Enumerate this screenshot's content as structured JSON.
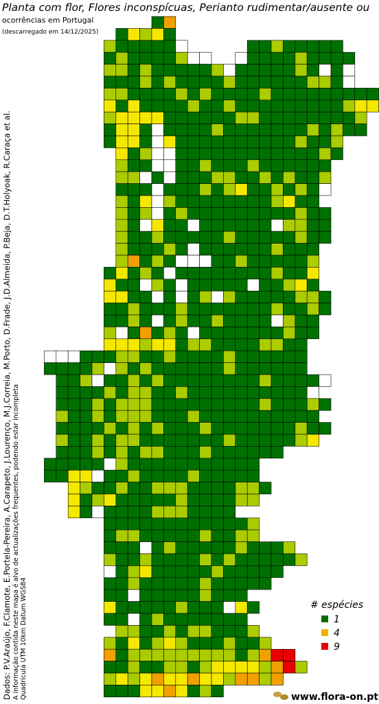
{
  "header": {
    "title": "Planta com flor, Flores inconspícuas, Perianto rudimentar/ausente ou",
    "subtitle": "ocorrências em Portugal",
    "download_note": "(descarregado em 14/12/2025)"
  },
  "credits": [
    "Dados: P.V.Araújo, F.Clamote, E.Portela-Pereira, A.Carapeto, J.Lourenço, M.J.Correia, M.Porto, D.Frade, J.D.Almeida, P.Beja, D.T.Holyoak, R.Caraça et al.",
    "A informação contida neste mapa é alvo de actualizações frequentes, podendo estar incompleta",
    "Quadrícula UTM 10km Datum WGS84"
  ],
  "legend": {
    "title": "# espécies",
    "entries": [
      {
        "value": 1,
        "color": "#007000"
      },
      {
        "value": 4,
        "color": "#f0b400"
      },
      {
        "value": 9,
        "color": "#e80000"
      }
    ]
  },
  "grid": {
    "colors": {
      "w": "#ffffff",
      "g": "#007000",
      "l": "#aacc00",
      "y": "#f5e800",
      "o": "#f0a000",
      "r": "#e80000"
    },
    "rows": [
      "..........go",
      ".......gylyg",
      "......lgggggw.....gglggggg",
      "......glgggglww..wgggglgggg",
      "......llglggggglwggggglgwgw",
      "......ggglglgggglggggggllgw",
      "......llgggglglgggglggggggggg",
      "......ygygggglgglggggggggglyy",
      "......lyyyyggggggllggggggggl",
      "......gyygwgggglggggggglglgg",
      "......gyygwygggggggggglggl",
      ".......yglwwgggggggggggglg",
      ".......lggwwgglggglgggggg",
      ".......llwgwgggllgglglggl",
      ".......gggwggglglygglglgw",
      ".......lgywlgggggggglygg",
      ".......lglwglggggggggglgg",
      ".......lgwyggwggggggwllgg",
      ".......lgglggggglggggglgg",
      ".......lggglgwgggggglggg",
      ".......loglgwwwgglgggggl",
      "......gyglgwgggggggglggy",
      "......yggwlgwgggggwgglyg",
      "......yyggwgwglwlgggggllg",
      "......gglggglggggggglgglg",
      "......gglgwglgglggggwlgg",
      "......lwgoglgwggggggglgg",
      "......yyylyygllggggllgg",
      ".wwwgggllgglgggglgggggg",
      ".gggglwlglgggggglgggggg",
      "..gglwgglglgggggggglggggw",
      "..gggglgllgglggggggggggw",
      "..ggglglllggggggggglggglg",
      "..lgglglllggglgggggggggg",
      "..gggglglglggglggggggglgg",
      "..lgglgllggggggglgggggly",
      "..ggglglgllggglgggggg",
      ".gggggwlggggggggggg",
      ".ggyywgglgggglggggg",
      "...ylgglgglllggggllg",
      "...yglyggggglggggll",
      "...ygwgggglllgggg",
      "......ggggggggggggl",
      "......gllggggglggll",
      "......gggwglggggglgggl",
      "......lgglgggglglgggggl",
      "......wglyggggglggggg",
      "......gglggggglggggg",
      "......ggwggggglggg",
      "......yggggglgggwyg",
      "......ggwglggggggg",
      ".......llgglgllgggl",
      "......lgyglylggglggl",
      "......oglllllllllglorr",
      "......gglggllglyyyylorl",
      "......lylyoyyoyyloolo",
      "......gggyyoyglg"
    ]
  },
  "logo": "www.flora-on.pt"
}
